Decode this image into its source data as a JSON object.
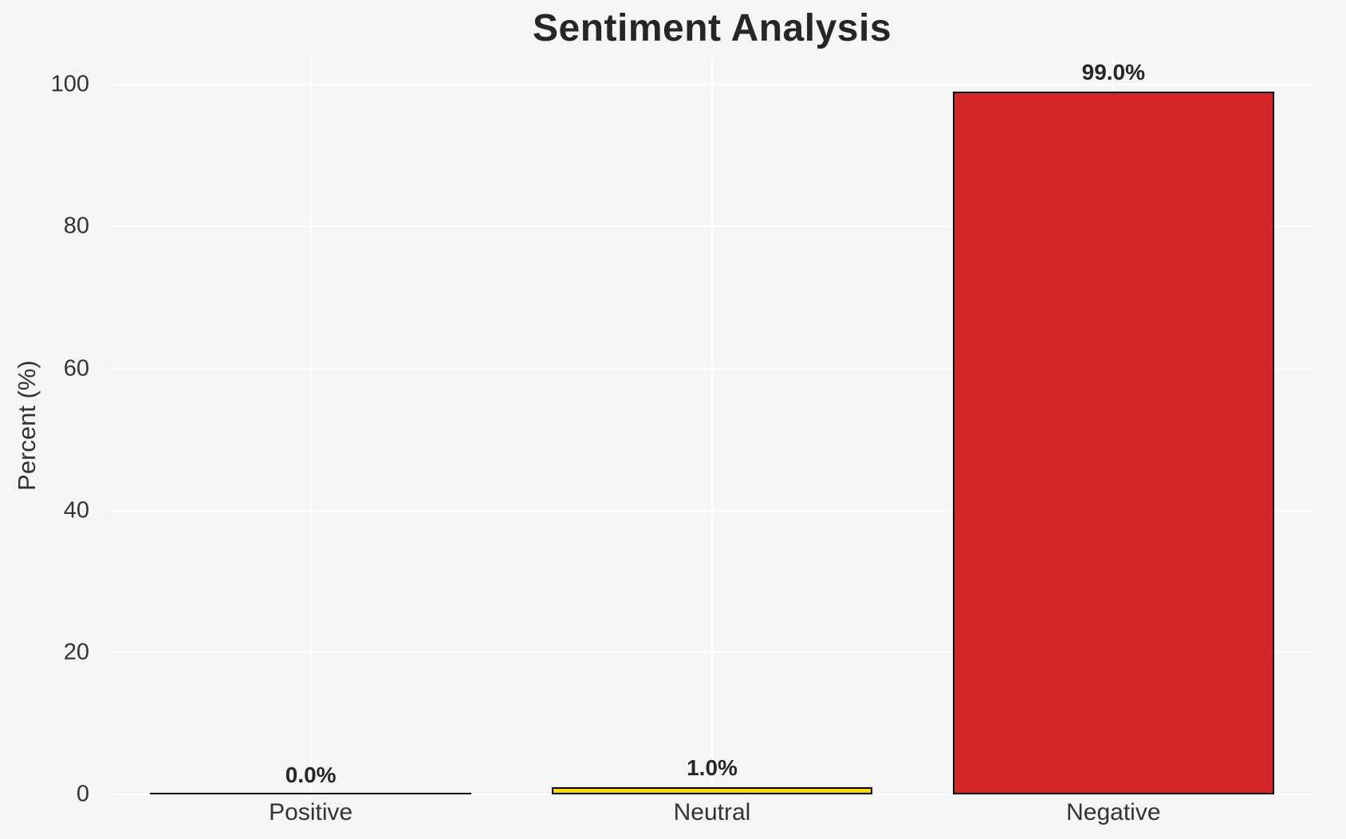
{
  "chart_data": {
    "type": "bar",
    "title": "Sentiment Analysis",
    "ylabel": "Percent (%)",
    "xlabel": "",
    "categories": [
      "Positive",
      "Neutral",
      "Negative"
    ],
    "values": [
      0.0,
      1.0,
      99.0
    ],
    "value_labels": [
      "0.0%",
      "1.0%",
      "99.0%"
    ],
    "yticks": [
      0,
      20,
      40,
      60,
      80,
      100
    ],
    "ylim": [
      0,
      103.95
    ],
    "bar_width_fraction": 0.8,
    "grid": true,
    "legend": false,
    "colors": {
      "background": "#f5f5f6",
      "gridline": "#ffffff",
      "bar_fills": [
        "none",
        "#ffd700",
        "#d62728"
      ],
      "bar_edge": "#000000",
      "title_text": "#262626",
      "tick_text": "#333333"
    }
  }
}
